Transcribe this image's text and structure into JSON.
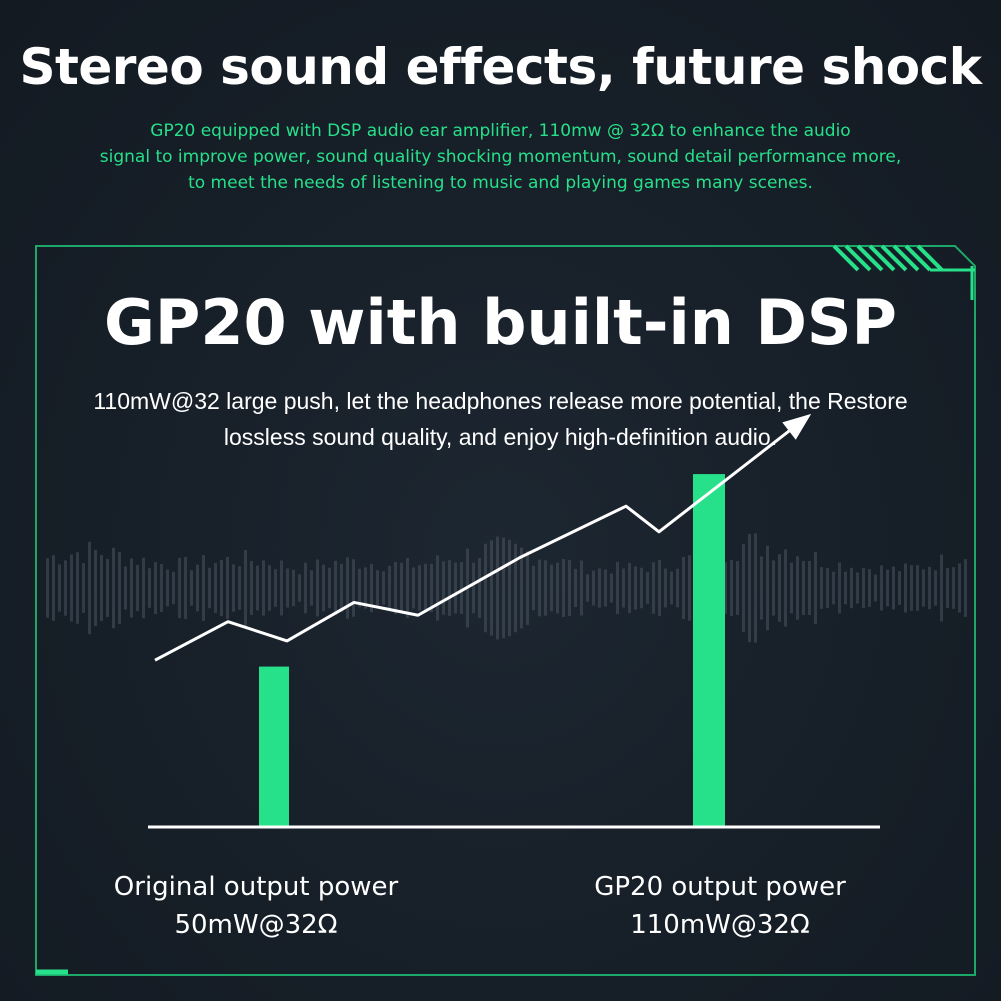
{
  "headline": "Stereo sound effects, future shock",
  "intro": {
    "line1": "GP20 equipped with DSP audio ear amplifier, 110mw @ 32Ω to enhance the audio",
    "line2": "signal to improve power, sound quality shocking momentum, sound detail performance more,",
    "line3": "to meet the needs of listening to music and playing games many scenes."
  },
  "panel": {
    "title": "GP20 with built-in DSP",
    "desc_line1": "110mW@32 large push, let the headphones release more potential, the Restore",
    "desc_line2": "lossless sound quality, and enjoy high-definition audio."
  },
  "colors": {
    "accent": "#27e08a",
    "frame": "#1fbf74",
    "background": "#17202a",
    "text": "#ffffff",
    "waveform": "#4a545e"
  },
  "chart_data": {
    "type": "bar",
    "title": "",
    "xlabel": "",
    "ylabel": "",
    "ylim": [
      0,
      120
    ],
    "grid": false,
    "categories": [
      {
        "name": "Original output power",
        "value_label": "50mW@32Ω"
      },
      {
        "name": "GP20 output power",
        "value_label": "110mW@32Ω"
      }
    ],
    "values": [
      50,
      110
    ],
    "unit": "mW",
    "trend_line": {
      "values": [
        52,
        64,
        58,
        70,
        66,
        84,
        100,
        92,
        128
      ],
      "arrow_at_end": true,
      "color": "#ffffff"
    }
  }
}
